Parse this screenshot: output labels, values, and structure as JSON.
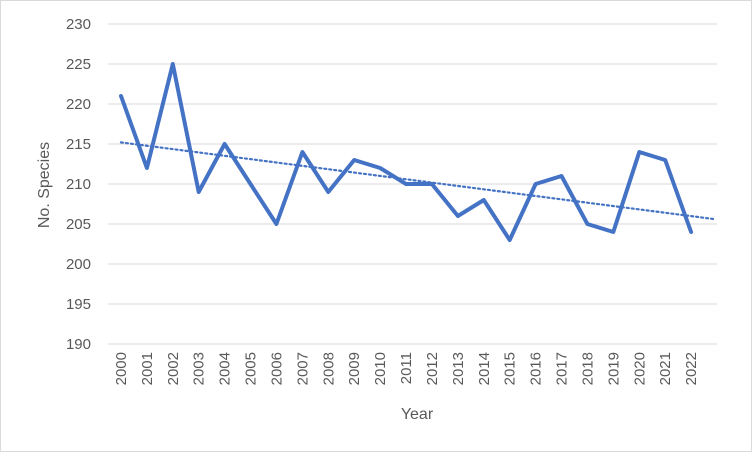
{
  "chart_data": {
    "type": "line",
    "title": "",
    "xlabel": "Year",
    "ylabel": "No. Species",
    "ylim": [
      190,
      230
    ],
    "ytick_step": 5,
    "grid": "horizontal",
    "legend": "none",
    "categories": [
      "2000",
      "2001",
      "2002",
      "2003",
      "2004",
      "2005",
      "2006",
      "2007",
      "2008",
      "2009",
      "2010",
      "2011",
      "2012",
      "2013",
      "2014",
      "2015",
      "2016",
      "2017",
      "2018",
      "2019",
      "2020",
      "2021",
      "2022"
    ],
    "series": [
      {
        "values": [
          221,
          212,
          225,
          209,
          215,
          210,
          205,
          214,
          209,
          213,
          212,
          210,
          210,
          206,
          208,
          203,
          210,
          211,
          205,
          204,
          214,
          213,
          204
        ],
        "color": "#4472c4"
      }
    ],
    "trendline": {
      "type": "linear",
      "style": "dotted",
      "color": "#4472c4",
      "start_value": 215.2,
      "end_value": 205.6
    }
  }
}
